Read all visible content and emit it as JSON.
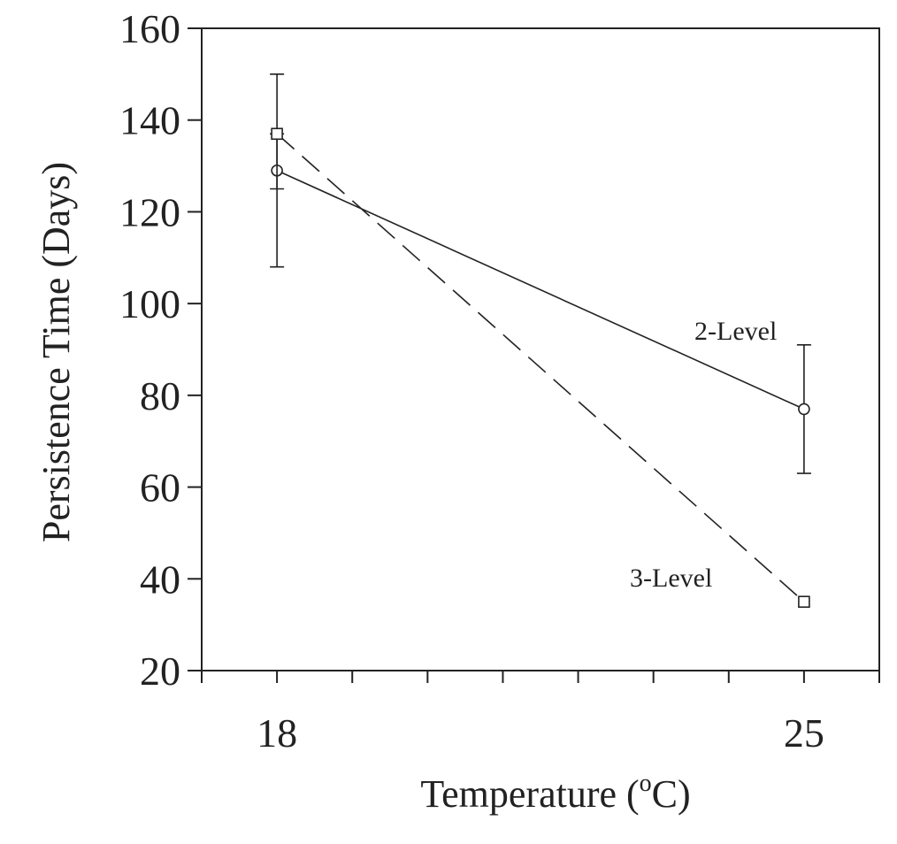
{
  "chart_data": {
    "type": "line",
    "xlabel": "Temperature (",
    "xlabel_sup": "o",
    "xlabel_end": "C)",
    "ylabel": "Persistence Time (Days)",
    "ylim": [
      20,
      160
    ],
    "yticks": [
      "20",
      "40",
      "60",
      "80",
      "100",
      "120",
      "140",
      "160"
    ],
    "xlim": [
      17,
      26
    ],
    "xticks": [
      "18",
      "25"
    ],
    "x_minor_ticks": [
      17,
      18,
      19,
      20,
      21,
      22,
      23,
      24,
      25,
      26
    ],
    "grid": false,
    "series": [
      {
        "name": "2-Level",
        "marker": "circle",
        "line": "solid",
        "x": [
          18,
          25
        ],
        "y": [
          129,
          77
        ],
        "error": [
          {
            "low": 108,
            "high": 150
          },
          {
            "low": 63,
            "high": 91
          }
        ]
      },
      {
        "name": "3-Level",
        "marker": "square",
        "line": "dashed",
        "x": [
          18,
          25
        ],
        "y": [
          137,
          35
        ],
        "error": [
          {
            "low": 125,
            "high": 137
          },
          null
        ]
      }
    ]
  },
  "colors": {
    "ink": "#222222",
    "background": "#ffffff"
  }
}
